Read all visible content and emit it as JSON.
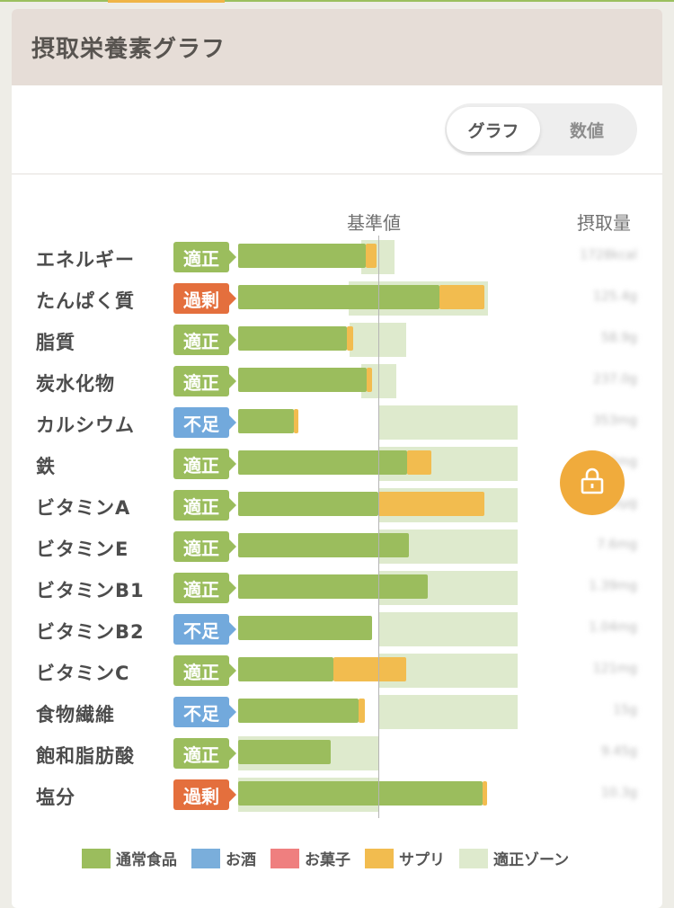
{
  "card": {
    "title": "摂取栄養素グラフ"
  },
  "toggle": {
    "graph_label": "グラフ",
    "number_label": "数値",
    "selected": "グラフ"
  },
  "columns": {
    "reference": "基準値",
    "intake": "摂取量"
  },
  "colors": {
    "food": "#9bbd5d",
    "alcohol": "#7aaedb",
    "snack": "#ef7f7f",
    "supplement": "#f2bc4f",
    "zone": "#deeacd",
    "status_ok": "#9bbd5d",
    "status_excess": "#e46f3d",
    "status_low": "#72a9dc",
    "lock": "#f0ab3c"
  },
  "nutrients": [
    {
      "name": "エネルギー",
      "status": "適正",
      "status_type": "ok",
      "intake": "1728kcal"
    },
    {
      "name": "たんぱく質",
      "status": "過剰",
      "status_type": "excess",
      "intake": "125.4g"
    },
    {
      "name": "脂質",
      "status": "適正",
      "status_type": "ok",
      "intake": "58.9g"
    },
    {
      "name": "炭水化物",
      "status": "適正",
      "status_type": "ok",
      "intake": "237.0g"
    },
    {
      "name": "カルシウム",
      "status": "不足",
      "status_type": "low",
      "intake": "353mg"
    },
    {
      "name": "鉄",
      "status": "適正",
      "status_type": "ok",
      "intake": "10.2mg"
    },
    {
      "name": "ビタミンA",
      "status": "適正",
      "status_type": "ok",
      "intake": "1065µg"
    },
    {
      "name": "ビタミンE",
      "status": "適正",
      "status_type": "ok",
      "intake": "7.6mg"
    },
    {
      "name": "ビタミンB1",
      "status": "適正",
      "status_type": "ok",
      "intake": "1.39mg"
    },
    {
      "name": "ビタミンB2",
      "status": "不足",
      "status_type": "low",
      "intake": "1.04mg"
    },
    {
      "name": "ビタミンC",
      "status": "適正",
      "status_type": "ok",
      "intake": "121mg"
    },
    {
      "name": "食物繊維",
      "status": "不足",
      "status_type": "low",
      "intake": "15g"
    },
    {
      "name": "飽和脂肪酸",
      "status": "適正",
      "status_type": "ok",
      "intake": "9.45g"
    },
    {
      "name": "塩分",
      "status": "過剰",
      "status_type": "excess",
      "intake": "10.3g"
    }
  ],
  "chart_data": {
    "type": "bar",
    "stacked": true,
    "unit": "% of reference (基準値 = 100)",
    "categories": [
      "エネルギー",
      "たんぱく質",
      "脂質",
      "炭水化物",
      "カルシウム",
      "鉄",
      "ビタミンA",
      "ビタミンE",
      "ビタミンB1",
      "ビタミンB2",
      "ビタミンC",
      "食物繊維",
      "飽和脂肪酸",
      "塩分"
    ],
    "series": [
      {
        "name": "通常食品",
        "values": [
          91,
          144,
          78,
          92,
          40,
          121,
          100,
          122,
          136,
          96,
          68,
          86,
          66,
          175
        ]
      },
      {
        "name": "お酒",
        "values": [
          0,
          0,
          0,
          0,
          0,
          0,
          0,
          0,
          0,
          0,
          0,
          0,
          0,
          0
        ]
      },
      {
        "name": "お菓子",
        "values": [
          0,
          0,
          0,
          0,
          0,
          0,
          0,
          0,
          0,
          0,
          0,
          0,
          0,
          0
        ]
      },
      {
        "name": "サプリ",
        "values": [
          8,
          32,
          4,
          4,
          3,
          17,
          76,
          0,
          0,
          0,
          52,
          5,
          0,
          3
        ]
      }
    ],
    "optimal_zone": [
      [
        88,
        112
      ],
      [
        79,
        179
      ],
      [
        80,
        120
      ],
      [
        88,
        113
      ],
      [
        100,
        200
      ],
      [
        100,
        200
      ],
      [
        100,
        200
      ],
      [
        100,
        200
      ],
      [
        100,
        200
      ],
      [
        100,
        200
      ],
      [
        100,
        200
      ],
      [
        100,
        200
      ],
      [
        0,
        100
      ],
      [
        0,
        100
      ]
    ],
    "reference_value": 100,
    "xlim": [
      0,
      200
    ]
  },
  "lock_icon": "lock-icon",
  "legend": [
    {
      "label": "通常食品",
      "color": "#9bbd5d"
    },
    {
      "label": "お酒",
      "color": "#7aaedb"
    },
    {
      "label": "お菓子",
      "color": "#ef7f7f"
    },
    {
      "label": "サプリ",
      "color": "#f2bc4f"
    },
    {
      "label": "適正ゾーン",
      "color": "#deeacd"
    }
  ]
}
